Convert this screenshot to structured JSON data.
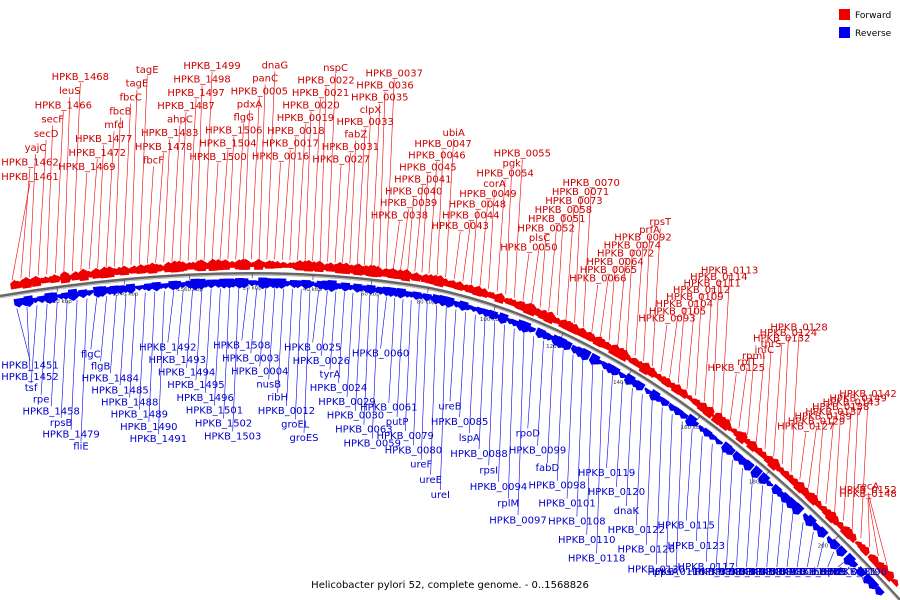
{
  "colors": {
    "forward": "#ee0000",
    "reverse": "#0000ee",
    "backbone": "#777777"
  },
  "legend": {
    "forward": "Forward",
    "reverse": "Reverse"
  },
  "caption": "Helicobacter pylori 52, complete genome. - 0..1568826",
  "ticks": [
    "1520 kbp",
    "1540 kbp",
    "1560 kbp",
    "20 kbp",
    "40 kbp",
    "60 kbp",
    "80 kbp",
    "100 kbp",
    "120 kbp",
    "140 kbp",
    "160 kbp",
    "180 kbp",
    "200 kbp"
  ],
  "forward_labels": [
    "HPKB_1461",
    "HPKB_1462",
    "yajC",
    "secD",
    "secF",
    "HPKB_1466",
    "leuS",
    "HPKB_1468",
    "HPKB_1469",
    "HPKB_1472",
    "HPKB_1477",
    "mfd",
    "fbcB",
    "fbcC",
    "tagE",
    "tagE",
    "fbcF",
    "HPKB_1478",
    "HPKB_1483",
    "ahpC",
    "HPKB_1487",
    "HPKB_1497",
    "HPKB_1498",
    "HPKB_1499",
    "HPKB_1500",
    "HPKB_1504",
    "HPKB_1506",
    "flgG",
    "pdxA",
    "HPKB_0005",
    "panC",
    "dnaG",
    "HPKB_0016",
    "HPKB_0017",
    "HPKB_0018",
    "HPKB_0019",
    "HPKB_0020",
    "HPKB_0021",
    "HPKB_0022",
    "nspC",
    "HPKB_0027",
    "HPKB_0031",
    "fabZ",
    "HPKB_0033",
    "clpX",
    "HPKB_0035",
    "HPKB_0036",
    "HPKB_0037",
    "HPKB_0038",
    "HPKB_0039",
    "HPKB_0040",
    "HPKB_0041",
    "HPKB_0045",
    "HPKB_0046",
    "HPKB_0047",
    "ubiA",
    "HPKB_0043",
    "HPKB_0044",
    "HPKB_0048",
    "HPKB_0049",
    "corA",
    "HPKB_0054",
    "pgk",
    "HPKB_0055",
    "HPKB_0050",
    "plsC",
    "HPKB_0052",
    "HPKB_0051",
    "HPKB_0058",
    "HPKB_0073",
    "HPKB_0071",
    "HPKB_0070",
    "HPKB_0066",
    "HPKB_0065",
    "HPKB_0064",
    "HPKB_0072",
    "HPKB_0074",
    "HPKB_0092",
    "prfA",
    "rpsT",
    "HPKB_0093",
    "HPKB_0105",
    "HPKB_0104",
    "HPKB_0109",
    "HPKB_0112",
    "HPKB_0111",
    "HPKB_0114",
    "HPKB_0113",
    "HPKB_0125",
    "rplT",
    "rpmI",
    "infC",
    "thrS",
    "HPKB_0132",
    "HPKB_0124",
    "HPKB_0128",
    "HPKB_0127",
    "HPKB_0129",
    "HPKB_0139",
    "HPKB_0137",
    "HPKB_0138",
    "HPKB_0143",
    "HPKB_0149",
    "HPKB_0142",
    "HPKB_0148",
    "HPKB_0152",
    "recA"
  ],
  "reverse_labels": [
    "HPKB_1451",
    "HPKB_1452",
    "tsf",
    "rpe",
    "HPKB_1458",
    "rpsB",
    "HPKB_1479",
    "fliE",
    "flgC",
    "flgB",
    "HPKB_1484",
    "HPKB_1485",
    "HPKB_1488",
    "HPKB_1489",
    "HPKB_1490",
    "HPKB_1491",
    "HPKB_1492",
    "HPKB_1493",
    "HPKB_1494",
    "HPKB_1495",
    "HPKB_1496",
    "HPKB_1501",
    "HPKB_1502",
    "HPKB_1503",
    "HPKB_1508",
    "HPKB_0003",
    "HPKB_0004",
    "nusB",
    "ribH",
    "HPKB_0012",
    "groEL",
    "groES",
    "HPKB_0025",
    "HPKB_0026",
    "tyrA",
    "HPKB_0024",
    "HPKB_0029",
    "HPKB_0030",
    "HPKB_0063",
    "HPKB_0059",
    "HPKB_0060",
    "HPKB_0061",
    "putP",
    "HPKB_0079",
    "HPKB_0080",
    "ureF",
    "ureE",
    "ureI",
    "ureB",
    "HPKB_0085",
    "lspA",
    "HPKB_0088",
    "rpsI",
    "HPKB_0094",
    "rplM",
    "HPKB_0097",
    "rpoD",
    "HPKB_0099",
    "fabD",
    "HPKB_0098",
    "HPKB_0101",
    "HPKB_0108",
    "HPKB_0110",
    "HPKB_0118",
    "HPKB_0119",
    "HPKB_0120",
    "dnaK",
    "HPKB_0122",
    "HPKB_0126",
    "HPKB_0130",
    "ppsA",
    "HPKB_0116",
    "HPKB_0115",
    "HPKB_0123",
    "HPKB_0117",
    "HPKB_0140",
    "HPKB_0141",
    "HPKB_0144",
    "HPKB_0145",
    "HPKB_0146",
    "HPKB_0147",
    "HPKB_0150",
    "HPKB_0151",
    "HPKB_0160",
    "HPKB_0167",
    "HPKB_0169",
    "hemB",
    "prfB",
    "HPKB_0181",
    "HPKB_0190"
  ]
}
